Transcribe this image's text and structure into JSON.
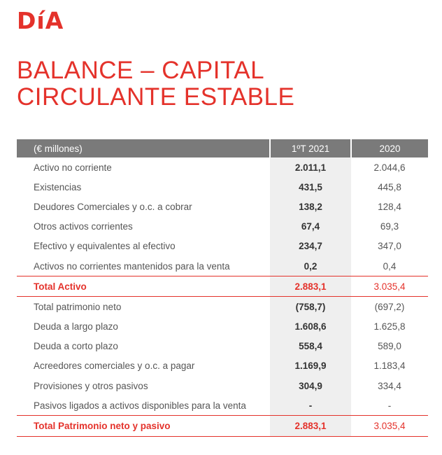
{
  "logo": "DíA",
  "title": "BALANCE – CAPITAL CIRCULANTE ESTABLE",
  "colors": {
    "accent": "#e4322b",
    "header_bg": "#7a7a7a",
    "highlight_col_bg": "#efefef"
  },
  "table": {
    "headers": [
      "(€ millones)",
      "1ºT 2021",
      "2020"
    ],
    "rows": [
      {
        "label": "Activo no corriente",
        "cur": "2.011,1",
        "prev": "2.044,6",
        "total": false
      },
      {
        "label": "Existencias",
        "cur": "431,5",
        "prev": "445,8",
        "total": false
      },
      {
        "label": "Deudores Comerciales y o.c. a cobrar",
        "cur": "138,2",
        "prev": "128,4",
        "total": false
      },
      {
        "label": "Otros activos corrientes",
        "cur": "67,4",
        "prev": "69,3",
        "total": false
      },
      {
        "label": "Efectivo y equivalentes al efectivo",
        "cur": "234,7",
        "prev": "347,0",
        "total": false
      },
      {
        "label": "Activos no corrientes mantenidos para la venta",
        "cur": "0,2",
        "prev": "0,4",
        "total": false
      },
      {
        "label": "Total Activo",
        "cur": "2.883,1",
        "prev": "3.035,4",
        "total": true
      },
      {
        "label": "Total patrimonio neto",
        "cur": "(758,7)",
        "prev": "(697,2)",
        "total": false
      },
      {
        "label": "Deuda a largo plazo",
        "cur": "1.608,6",
        "prev": "1.625,8",
        "total": false
      },
      {
        "label": "Deuda a corto plazo",
        "cur": "558,4",
        "prev": "589,0",
        "total": false
      },
      {
        "label": "Acreedores comerciales y o.c. a pagar",
        "cur": "1.169,9",
        "prev": "1.183,4",
        "total": false
      },
      {
        "label": "Provisiones y otros pasivos",
        "cur": "304,9",
        "prev": "334,4",
        "total": false
      },
      {
        "label": "Pasivos ligados a activos disponibles para la venta",
        "cur": "-",
        "prev": "-",
        "total": false
      },
      {
        "label": "Total Patrimonio neto y pasivo",
        "cur": "2.883,1",
        "prev": "3.035,4",
        "total": true
      }
    ]
  }
}
